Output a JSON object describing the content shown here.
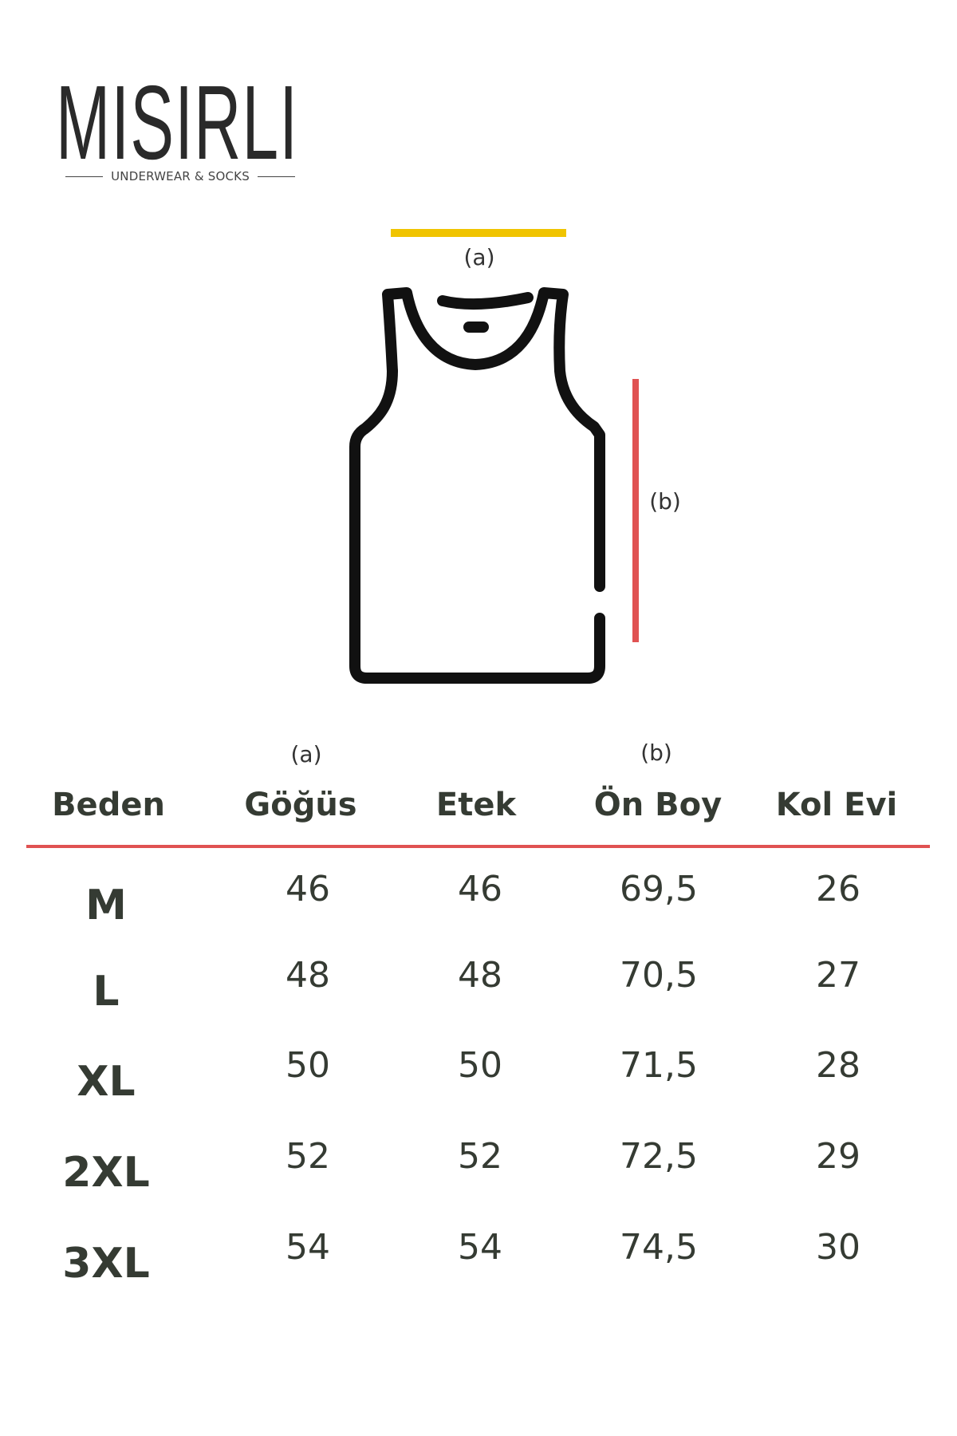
{
  "brand": {
    "name": "MISIRLI",
    "tagline": "UNDERWEAR & SOCKS"
  },
  "diagram": {
    "label_a": "(a)",
    "label_b": "(b)",
    "colors": {
      "a_line": "#f0c400",
      "b_line": "#e05252",
      "outline": "#111111"
    },
    "icon": "tank-top-icon"
  },
  "table": {
    "header_notes": {
      "gogus": "(a)",
      "on_boy": "(b)"
    },
    "headers": [
      "Beden",
      "Göğüs",
      "Etek",
      "Ön Boy",
      "Kol Evi"
    ],
    "divider_color": "#e05252",
    "rows": [
      [
        "M",
        "46",
        "46",
        "69,5",
        "26"
      ],
      [
        "L",
        "48",
        "48",
        "70,5",
        "27"
      ],
      [
        "XL",
        "50",
        "50",
        "71,5",
        "28"
      ],
      [
        "2XL",
        "52",
        "52",
        "72,5",
        "29"
      ],
      [
        "3XL",
        "54",
        "54",
        "74,5",
        "30"
      ]
    ]
  }
}
